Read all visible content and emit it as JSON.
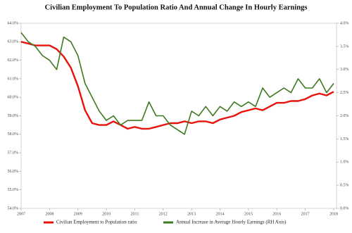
{
  "chart_data": {
    "type": "line",
    "title": "Civilian Employment To Population Ratio And Annual Change In Hourly Earnings",
    "x": [
      2007,
      2007.25,
      2007.5,
      2007.75,
      2008,
      2008.25,
      2008.5,
      2008.75,
      2009,
      2009.25,
      2009.5,
      2009.75,
      2010,
      2010.25,
      2010.5,
      2010.75,
      2011,
      2011.25,
      2011.5,
      2011.75,
      2012,
      2012.25,
      2012.5,
      2012.75,
      2013,
      2013.25,
      2013.5,
      2013.75,
      2014,
      2014.25,
      2014.5,
      2014.75,
      2015,
      2015.25,
      2015.5,
      2015.75,
      2016,
      2016.25,
      2016.5,
      2016.75,
      2017,
      2017.25,
      2017.5,
      2017.75,
      2018
    ],
    "series": [
      {
        "name": "Civilian Employment to Population ratio",
        "color": "#e8120c",
        "axis": "y",
        "values": [
          63.0,
          62.9,
          62.8,
          62.8,
          62.8,
          62.6,
          62.2,
          61.6,
          60.6,
          59.3,
          58.6,
          58.5,
          58.5,
          58.7,
          58.5,
          58.3,
          58.4,
          58.3,
          58.3,
          58.4,
          58.5,
          58.6,
          58.6,
          58.7,
          58.6,
          58.7,
          58.7,
          58.6,
          58.8,
          58.9,
          59.0,
          59.2,
          59.3,
          59.4,
          59.3,
          59.5,
          59.7,
          59.7,
          59.8,
          59.8,
          59.9,
          60.1,
          60.2,
          60.1,
          60.3
        ]
      },
      {
        "name": "Annual Increase in Average Hourly Earnings (RH Axis)",
        "color": "#3d7a22",
        "axis": "y2",
        "values": [
          3.8,
          3.6,
          3.5,
          3.3,
          3.2,
          3.0,
          3.7,
          3.6,
          3.3,
          2.7,
          2.4,
          2.1,
          1.9,
          2.0,
          1.8,
          1.9,
          1.9,
          1.9,
          2.3,
          2.0,
          2.0,
          1.8,
          1.7,
          1.6,
          2.1,
          2.0,
          2.2,
          2.0,
          2.2,
          2.1,
          2.3,
          2.2,
          2.3,
          2.2,
          2.6,
          2.4,
          2.5,
          2.6,
          2.5,
          2.8,
          2.6,
          2.6,
          2.8,
          2.5,
          2.7
        ]
      }
    ],
    "xlim": [
      2007,
      2018.1
    ],
    "xticks": [
      2007,
      2008,
      2009,
      2010,
      2011,
      2012,
      2013,
      2014,
      2015,
      2016,
      2017,
      2018
    ],
    "ylim": [
      54,
      64
    ],
    "yticks": [
      {
        "value": 54,
        "label": "54.0%"
      },
      {
        "value": 55,
        "label": "55.0%"
      },
      {
        "value": 56,
        "label": "56.0%"
      },
      {
        "value": 57,
        "label": "57.0%"
      },
      {
        "value": 58,
        "label": "58.0%"
      },
      {
        "value": 59,
        "label": "59.0%"
      },
      {
        "value": 60,
        "label": "60.0%"
      },
      {
        "value": 61,
        "label": "61.0%"
      },
      {
        "value": 62,
        "label": "62.0%"
      },
      {
        "value": 63,
        "label": "63.0%"
      },
      {
        "value": 64,
        "label": "64.0%"
      }
    ],
    "y2lim": [
      0,
      4
    ],
    "y2ticks": [
      {
        "value": 0,
        "label": "0.0%"
      },
      {
        "value": 0.5,
        "label": "0.5%"
      },
      {
        "value": 1,
        "label": "1.0%"
      },
      {
        "value": 1.5,
        "label": "1.5%"
      },
      {
        "value": 2,
        "label": "2.0%"
      },
      {
        "value": 2.5,
        "label": "2.5%"
      },
      {
        "value": 3,
        "label": "3.0%"
      },
      {
        "value": 3.5,
        "label": "3.5%"
      },
      {
        "value": 4,
        "label": "4.0%"
      }
    ]
  }
}
